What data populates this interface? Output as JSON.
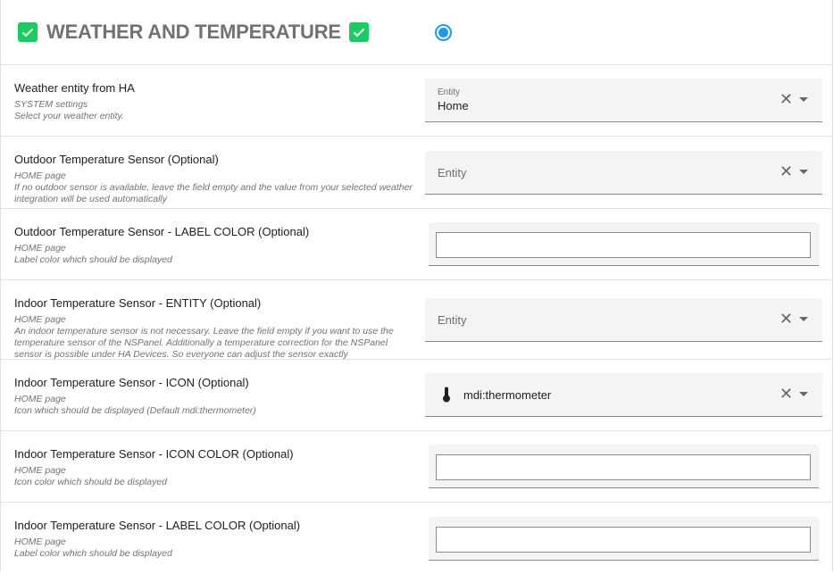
{
  "header": {
    "title": "WEATHER AND TEMPERATURE",
    "check_color": "#1bcc62",
    "radio_color": "#1e9bf0",
    "radio_selected": true
  },
  "rows": [
    {
      "label": "Weather entity from HA",
      "sub1": "SYSTEM settings",
      "sub2": "Select your weather entity.",
      "field": {
        "type": "entity",
        "label": "Entity",
        "value": "Home"
      }
    },
    {
      "label": "Outdoor Temperature Sensor (Optional)",
      "sub1": "HOME page",
      "sub2": "If no outdoor sensor is available, leave the field empty and the value from your selected weather integration will be used automatically",
      "field": {
        "type": "entity",
        "placeholder": "Entity"
      }
    },
    {
      "label": "Outdoor Temperature Sensor - LABEL COLOR (Optional)",
      "sub1": "HOME page",
      "sub2": "Label color which should be displayed",
      "field": {
        "type": "color",
        "value": ""
      }
    },
    {
      "label": "Indoor Temperature Sensor - ENTITY (Optional)",
      "sub1": "HOME page",
      "sub2": "An indoor temperature sensor is not necessary. Leave the field empty if you want to use the temperature sensor of the NSPanel. Additionally a temperature correction for the NSPanel sensor is possible under HA Devices. So everyone can adjust the sensor exactly",
      "field": {
        "type": "entity",
        "placeholder": "Entity"
      }
    },
    {
      "label": "Indoor Temperature Sensor - ICON (Optional)",
      "sub1": "HOME page",
      "sub2": "Icon which should be displayed (Default mdi:thermometer)",
      "field": {
        "type": "icon",
        "icon": "thermometer-icon",
        "value": "mdi:thermometer"
      }
    },
    {
      "label": "Indoor Temperature Sensor - ICON COLOR (Optional)",
      "sub1": "HOME page",
      "sub2": "Icon color which should be displayed",
      "field": {
        "type": "color",
        "value": ""
      }
    },
    {
      "label": "Indoor Temperature Sensor - LABEL COLOR (Optional)",
      "sub1": "HOME page",
      "sub2": "Label color which should be displayed",
      "field": {
        "type": "color",
        "value": ""
      }
    }
  ]
}
